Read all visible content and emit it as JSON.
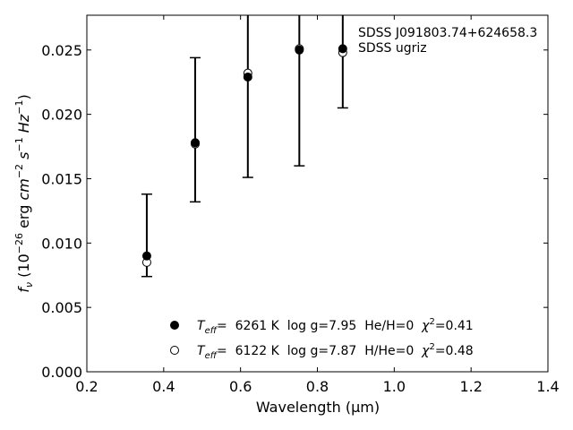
{
  "chart_data": {
    "type": "scatter",
    "xlabel": "Wavelength (μm)",
    "ylabel": "fν (10⁻²⁶ erg cm⁻² s⁻¹ Hz⁻¹)",
    "xlim": [
      0.2,
      1.4
    ],
    "ylim": [
      0.0,
      0.0277
    ],
    "x_ticks": [
      "0.2",
      "0.4",
      "0.6",
      "0.8",
      "1.0",
      "1.2",
      "1.4"
    ],
    "y_ticks": [
      "0.000",
      "0.005",
      "0.010",
      "0.015",
      "0.020",
      "0.025"
    ],
    "annotation": [
      "SDSS J091803.74+624658.3",
      "SDSS ugriz"
    ],
    "errorbars": {
      "x": [
        0.356,
        0.482,
        0.619,
        0.753,
        0.866
      ],
      "y": [
        0.0106,
        0.0188,
        0.023,
        0.025,
        0.0251
      ],
      "lower": [
        0.0074,
        0.0132,
        0.0151,
        0.016,
        0.0205
      ],
      "upper": [
        0.0138,
        0.0244,
        0.0309,
        0.034,
        0.0297
      ]
    },
    "series": [
      {
        "name": "T_eff=  6261 K  log g=7.95  He/H=0  χ²=0.41",
        "marker": "filled-circle",
        "x": [
          0.356,
          0.482,
          0.619,
          0.753,
          0.866
        ],
        "y": [
          0.009,
          0.0178,
          0.0229,
          0.025,
          0.0251
        ]
      },
      {
        "name": "T_eff=  6122 K  log g=7.87  H/He=0  χ²=0.48",
        "marker": "open-circle",
        "x": [
          0.356,
          0.482,
          0.619,
          0.753,
          0.866
        ],
        "y": [
          0.0085,
          0.0177,
          0.0232,
          0.0251,
          0.0248
        ]
      }
    ],
    "legend_placement": "lower-center",
    "legend": [
      {
        "teff_label": "T",
        "teff_sub": "eff",
        "text": "=  6261 K  log g=7.95  He/H=0  ",
        "chi": "χ",
        "chi_sup": "2",
        "chi_val": "=0.41"
      },
      {
        "teff_label": "T",
        "teff_sub": "eff",
        "text": "=  6122 K  log g=7.87  H/He=0  ",
        "chi": "χ",
        "chi_sup": "2",
        "chi_val": "=0.48"
      }
    ],
    "grid": false
  }
}
